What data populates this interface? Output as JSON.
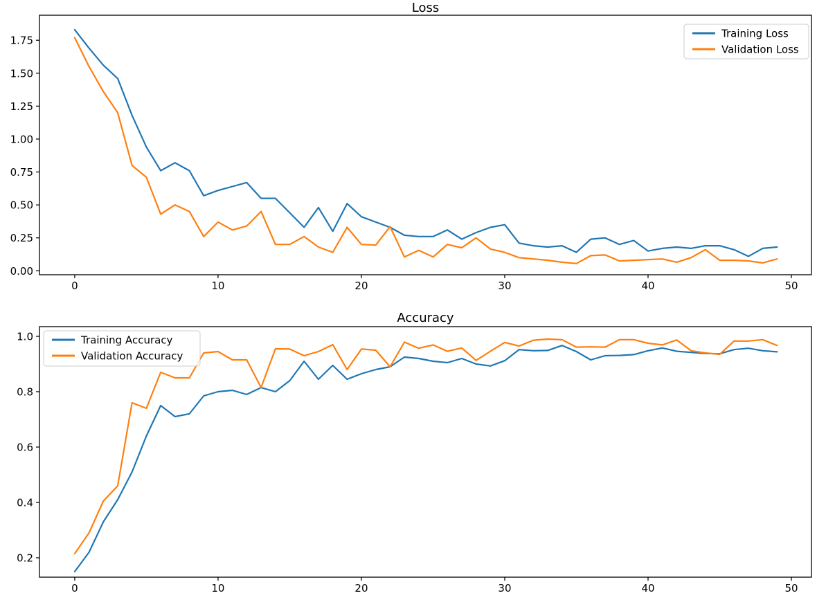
{
  "figure": {
    "background": "#ffffff"
  },
  "colors": {
    "training": "#1f77b4",
    "validation": "#ff7f0e",
    "axis": "#000000",
    "legend_border": "#cccccc"
  },
  "chart_data": [
    {
      "id": "loss",
      "type": "line",
      "title": "Loss",
      "xlabel": "",
      "ylabel": "",
      "grid": false,
      "x": [
        0,
        1,
        2,
        3,
        4,
        5,
        6,
        7,
        8,
        9,
        10,
        11,
        12,
        13,
        14,
        15,
        16,
        17,
        18,
        19,
        20,
        21,
        22,
        23,
        24,
        25,
        26,
        27,
        28,
        29,
        30,
        31,
        32,
        33,
        34,
        35,
        36,
        37,
        38,
        39,
        40,
        41,
        42,
        43,
        44,
        45,
        46,
        47,
        48,
        49
      ],
      "series": [
        {
          "name": "Training Loss",
          "color": "#1f77b4",
          "values": [
            1.83,
            1.69,
            1.56,
            1.46,
            1.18,
            0.94,
            0.76,
            0.82,
            0.76,
            0.57,
            0.61,
            0.64,
            0.67,
            0.55,
            0.55,
            0.44,
            0.33,
            0.48,
            0.3,
            0.51,
            0.41,
            0.37,
            0.33,
            0.27,
            0.26,
            0.26,
            0.31,
            0.24,
            0.29,
            0.33,
            0.35,
            0.21,
            0.19,
            0.18,
            0.19,
            0.14,
            0.24,
            0.25,
            0.2,
            0.23,
            0.15,
            0.17,
            0.18,
            0.17,
            0.19,
            0.19,
            0.16,
            0.11,
            0.17,
            0.18
          ]
        },
        {
          "name": "Validation Loss",
          "color": "#ff7f0e",
          "values": [
            1.77,
            1.55,
            1.36,
            1.2,
            0.8,
            0.71,
            0.43,
            0.5,
            0.45,
            0.26,
            0.37,
            0.31,
            0.34,
            0.45,
            0.2,
            0.2,
            0.26,
            0.18,
            0.14,
            0.33,
            0.2,
            0.195,
            0.335,
            0.105,
            0.155,
            0.105,
            0.2,
            0.175,
            0.25,
            0.165,
            0.14,
            0.1,
            0.09,
            0.08,
            0.065,
            0.055,
            0.115,
            0.12,
            0.075,
            0.08,
            0.085,
            0.09,
            0.065,
            0.1,
            0.16,
            0.08,
            0.08,
            0.075,
            0.06,
            0.09
          ]
        }
      ],
      "xticks": {
        "values": [
          0,
          10,
          20,
          30,
          40,
          50
        ],
        "labels": [
          "0",
          "10",
          "20",
          "30",
          "40",
          "50"
        ]
      },
      "yticks": {
        "values": [
          0.0,
          0.25,
          0.5,
          0.75,
          1.0,
          1.25,
          1.5,
          1.75
        ],
        "labels": [
          "0.00",
          "0.25",
          "0.50",
          "0.75",
          "1.00",
          "1.25",
          "1.50",
          "1.75"
        ]
      },
      "xlim": [
        -2.46,
        51.4
      ],
      "ylim": [
        -0.03,
        1.94
      ],
      "legend": {
        "position": "upper-right",
        "entries": [
          "Training Loss",
          "Validation Loss"
        ]
      }
    },
    {
      "id": "accuracy",
      "type": "line",
      "title": "Accuracy",
      "xlabel": "",
      "ylabel": "",
      "grid": false,
      "x": [
        0,
        1,
        2,
        3,
        4,
        5,
        6,
        7,
        8,
        9,
        10,
        11,
        12,
        13,
        14,
        15,
        16,
        17,
        18,
        19,
        20,
        21,
        22,
        23,
        24,
        25,
        26,
        27,
        28,
        29,
        30,
        31,
        32,
        33,
        34,
        35,
        36,
        37,
        38,
        39,
        40,
        41,
        42,
        43,
        44,
        45,
        46,
        47,
        48,
        49
      ],
      "series": [
        {
          "name": "Training Accuracy",
          "color": "#1f77b4",
          "values": [
            0.15,
            0.22,
            0.33,
            0.41,
            0.51,
            0.64,
            0.75,
            0.71,
            0.72,
            0.785,
            0.8,
            0.805,
            0.79,
            0.815,
            0.8,
            0.84,
            0.91,
            0.845,
            0.895,
            0.845,
            0.865,
            0.88,
            0.89,
            0.925,
            0.92,
            0.91,
            0.905,
            0.92,
            0.9,
            0.893,
            0.912,
            0.952,
            0.948,
            0.949,
            0.967,
            0.945,
            0.915,
            0.93,
            0.931,
            0.934,
            0.948,
            0.958,
            0.946,
            0.942,
            0.938,
            0.937,
            0.952,
            0.957,
            0.948,
            0.944
          ]
        },
        {
          "name": "Validation Accuracy",
          "color": "#ff7f0e",
          "values": [
            0.215,
            0.29,
            0.405,
            0.46,
            0.76,
            0.74,
            0.87,
            0.85,
            0.85,
            0.94,
            0.945,
            0.915,
            0.915,
            0.815,
            0.955,
            0.954,
            0.93,
            0.945,
            0.97,
            0.88,
            0.954,
            0.95,
            0.89,
            0.979,
            0.957,
            0.969,
            0.946,
            0.958,
            0.913,
            0.946,
            0.978,
            0.965,
            0.986,
            0.99,
            0.988,
            0.961,
            0.962,
            0.961,
            0.988,
            0.988,
            0.975,
            0.969,
            0.987,
            0.948,
            0.94,
            0.935,
            0.983,
            0.983,
            0.988,
            0.967
          ]
        }
      ],
      "xticks": {
        "values": [
          0,
          10,
          20,
          30,
          40,
          50
        ],
        "labels": [
          "0",
          "10",
          "20",
          "30",
          "40",
          "50"
        ]
      },
      "yticks": {
        "values": [
          0.2,
          0.4,
          0.6,
          0.8,
          1.0
        ],
        "labels": [
          "0.2",
          "0.4",
          "0.6",
          "0.8",
          "1.0"
        ]
      },
      "xlim": [
        -2.46,
        51.4
      ],
      "ylim": [
        0.13,
        1.035
      ],
      "legend": {
        "position": "upper-left",
        "entries": [
          "Training Accuracy",
          "Validation Accuracy"
        ]
      }
    }
  ]
}
